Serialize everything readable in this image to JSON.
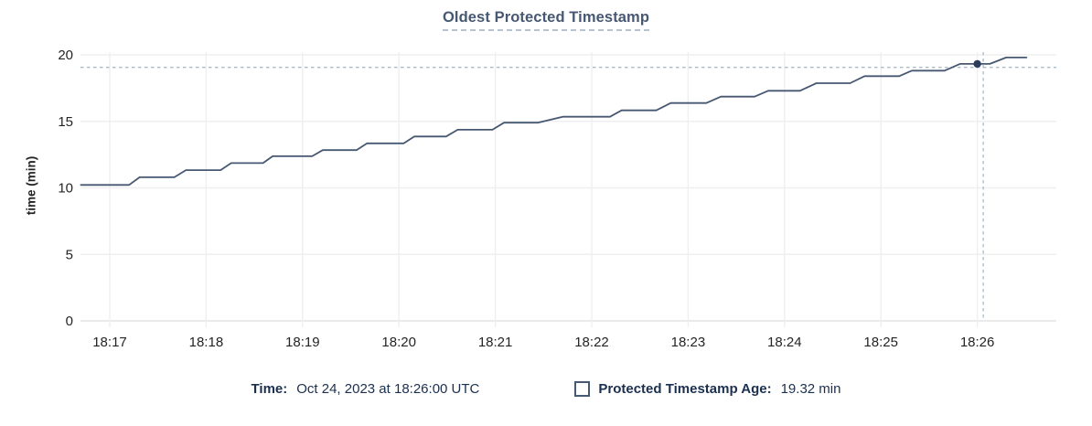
{
  "chart_data": {
    "type": "line",
    "title": "Oldest Protected Timestamp",
    "xlabel": "",
    "ylabel": "time (min)",
    "x_ticks": [
      "18:17",
      "18:18",
      "18:19",
      "18:20",
      "18:21",
      "18:22",
      "18:23",
      "18:24",
      "18:25",
      "18:26"
    ],
    "y_ticks": [
      0,
      5,
      10,
      15,
      20
    ],
    "ylim": [
      0,
      20
    ],
    "x_range_minutes_after_1817": [
      -0.3,
      9.82
    ],
    "grid": true,
    "legend_position": "bottom",
    "series": [
      {
        "name": "Protected Timestamp Age",
        "unit": "min",
        "color": "#475872",
        "x_unit": "minutes after 18:17",
        "points": [
          [
            -0.3,
            10.22
          ],
          [
            0.2,
            10.22
          ],
          [
            0.31,
            10.8
          ],
          [
            0.67,
            10.8
          ],
          [
            0.79,
            11.33
          ],
          [
            1.15,
            11.33
          ],
          [
            1.26,
            11.86
          ],
          [
            1.59,
            11.86
          ],
          [
            1.69,
            12.38
          ],
          [
            2.1,
            12.38
          ],
          [
            2.21,
            12.84
          ],
          [
            2.56,
            12.84
          ],
          [
            2.67,
            13.35
          ],
          [
            3.05,
            13.35
          ],
          [
            3.16,
            13.86
          ],
          [
            3.49,
            13.86
          ],
          [
            3.61,
            14.37
          ],
          [
            3.97,
            14.37
          ],
          [
            4.09,
            14.9
          ],
          [
            4.44,
            14.9
          ],
          [
            4.7,
            15.35
          ],
          [
            5.19,
            15.35
          ],
          [
            5.31,
            15.83
          ],
          [
            5.67,
            15.83
          ],
          [
            5.82,
            16.38
          ],
          [
            6.19,
            16.38
          ],
          [
            6.34,
            16.86
          ],
          [
            6.69,
            16.86
          ],
          [
            6.83,
            17.3
          ],
          [
            7.16,
            17.3
          ],
          [
            7.33,
            17.87
          ],
          [
            7.68,
            17.87
          ],
          [
            7.83,
            18.4
          ],
          [
            8.19,
            18.4
          ],
          [
            8.32,
            18.81
          ],
          [
            8.66,
            18.81
          ],
          [
            8.82,
            19.32
          ],
          [
            9.13,
            19.32
          ],
          [
            9.3,
            19.8
          ],
          [
            9.51,
            19.8
          ]
        ]
      }
    ],
    "highlight_point": {
      "x": 9.0,
      "time": "18:26:00",
      "value": 19.32
    }
  },
  "legend": {
    "time_label": "Time:",
    "time_value": "Oct 24, 2023 at 18:26:00 UTC",
    "series_label": "Protected Timestamp Age:",
    "series_value": "19.32 min"
  },
  "icons": {
    "series_checkbox": "unchecked-square-outline"
  },
  "colors": {
    "title": "#475872",
    "line": "#475872",
    "dot": "#2c3d5c",
    "legend_text": "#1b2f4f",
    "tick_text": "#242424",
    "gridline": "#efefef",
    "zero_line": "#e3e3e3",
    "crosshair": "#a7bbca",
    "title_underline": "#b7c2d1",
    "background": "#ffffff"
  }
}
